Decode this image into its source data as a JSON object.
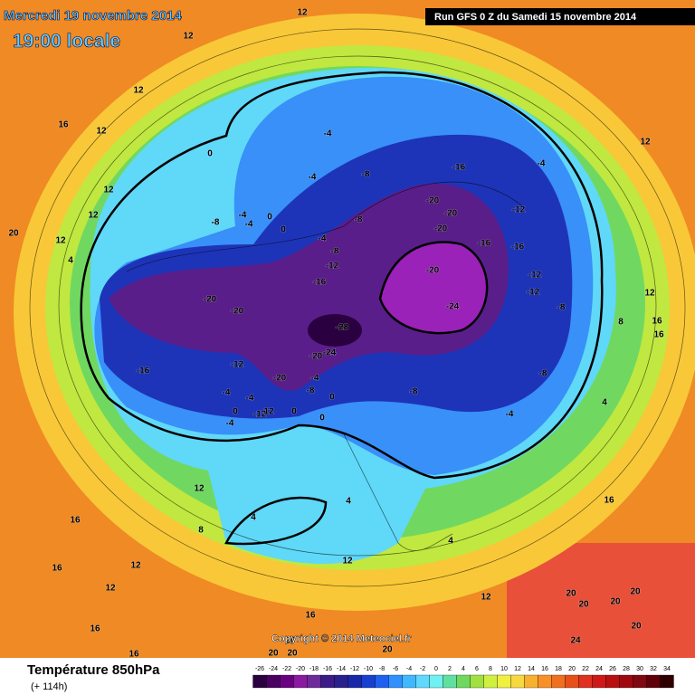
{
  "header": {
    "date_line": "Mercredi 19 novembre 2014",
    "time_line": "19:00 locale",
    "run_info": "Run GFS 0 Z du Samedi 15 novembre 2014"
  },
  "copyright": "Copyright © 2014 Meteociel.fr",
  "legend": {
    "title": "Température 850hPa",
    "subtitle": "(+ 114h)",
    "ticks": [
      -26,
      -24,
      -22,
      -20,
      -18,
      -16,
      -14,
      -12,
      -10,
      -8,
      -6,
      -4,
      -2,
      0,
      2,
      4,
      6,
      8,
      10,
      12,
      14,
      16,
      18,
      20,
      22,
      24,
      26,
      28,
      30,
      32,
      34
    ],
    "colors": [
      "#2a0040",
      "#4a0060",
      "#6a0080",
      "#8a1aa0",
      "#6c2a9a",
      "#3c1a88",
      "#28208c",
      "#1828a8",
      "#1840d0",
      "#2060f0",
      "#3090ff",
      "#40b8ff",
      "#60d8ff",
      "#70f0f0",
      "#60e0a0",
      "#70d860",
      "#a0e040",
      "#d0f040",
      "#f0f040",
      "#f8d840",
      "#f8b030",
      "#f89028",
      "#f07020",
      "#e85018",
      "#e03020",
      "#d01818",
      "#b81010",
      "#a00810",
      "#800810",
      "#600008",
      "#300000"
    ]
  },
  "contour_labels": [
    12,
    12,
    12,
    16,
    12,
    12,
    12,
    12,
    20,
    4,
    0,
    -8,
    -4,
    0,
    -4,
    0,
    -4,
    -4,
    -8,
    -8,
    -4,
    -8,
    -12,
    -16,
    -16,
    -4,
    -20,
    -20,
    -20,
    -12,
    -16,
    -16,
    -20,
    -12,
    -12,
    -8,
    -24,
    -20,
    -20,
    -28,
    -20,
    -24,
    -12,
    -16,
    -20,
    -4,
    -4,
    -4,
    -8,
    0,
    -8,
    0,
    -12,
    12,
    -4,
    0,
    0,
    -8,
    -4,
    12,
    12,
    16,
    16,
    8,
    4,
    12,
    4,
    8,
    16,
    16,
    12,
    12,
    4,
    12,
    4,
    12,
    16,
    20,
    20,
    20,
    20,
    24,
    20,
    20,
    20,
    20,
    20,
    16,
    16,
    16
  ]
}
